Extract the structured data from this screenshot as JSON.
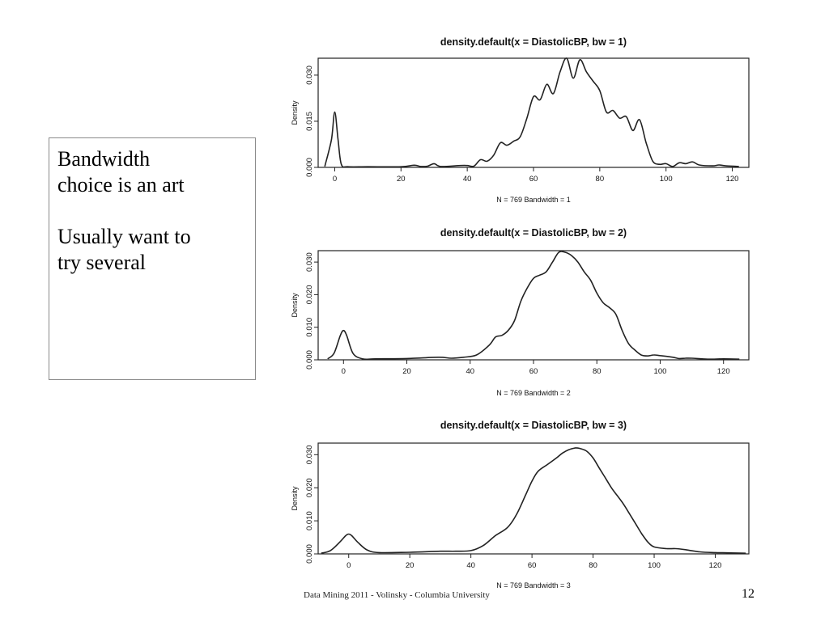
{
  "slide": {
    "text_lines_1": [
      "Bandwidth",
      "choice is an art"
    ],
    "text_lines_2": [
      "Usually want to",
      "try several"
    ],
    "footer": "Data Mining 2011 - Volinsky - Columbia University",
    "page_number": "12"
  },
  "chart_data": [
    {
      "type": "line",
      "title": "density.default(x = DiastolicBP, bw = 1)",
      "xlabel": "N = 769   Bandwidth = 1",
      "ylabel": "Density",
      "xlim": [
        -5,
        125
      ],
      "ylim": [
        0,
        0.0355
      ],
      "xticks": [
        0,
        20,
        40,
        60,
        80,
        100,
        120
      ],
      "yticks": [
        0.0,
        0.015,
        0.03
      ],
      "ytick_labels": [
        "0.000",
        "0.015",
        "0.030"
      ],
      "series": [
        {
          "x": [
            -3,
            -1,
            0,
            1,
            2,
            4,
            10,
            20,
            24,
            26,
            28,
            30,
            32,
            38,
            40,
            42,
            44,
            46,
            48,
            50,
            52,
            54,
            56,
            58,
            60,
            62,
            64,
            66,
            68,
            70,
            72,
            74,
            76,
            78,
            80,
            82,
            84,
            86,
            88,
            90,
            92,
            94,
            96,
            98,
            100,
            102,
            104,
            106,
            108,
            110,
            114,
            116,
            118,
            122
          ],
          "y": [
            0.0003,
            0.009,
            0.018,
            0.009,
            0.001,
            0.0002,
            0.0002,
            0.0002,
            0.0007,
            0.0003,
            0.0004,
            0.0012,
            0.0003,
            0.0006,
            0.0006,
            0.0004,
            0.0025,
            0.002,
            0.004,
            0.008,
            0.0072,
            0.0085,
            0.01,
            0.016,
            0.023,
            0.022,
            0.027,
            0.024,
            0.031,
            0.0355,
            0.029,
            0.035,
            0.031,
            0.028,
            0.025,
            0.018,
            0.0185,
            0.016,
            0.0165,
            0.012,
            0.0155,
            0.008,
            0.002,
            0.001,
            0.0012,
            0.0003,
            0.0015,
            0.0012,
            0.0018,
            0.0008,
            0.0005,
            0.0008,
            0.0005,
            0.0003
          ]
        }
      ]
    },
    {
      "type": "line",
      "title": "density.default(x = DiastolicBP, bw = 2)",
      "xlabel": "N = 769   Bandwidth = 2",
      "ylabel": "Density",
      "xlim": [
        -8,
        128
      ],
      "ylim": [
        0,
        0.0335
      ],
      "xticks": [
        0,
        20,
        40,
        60,
        80,
        100,
        120
      ],
      "yticks": [
        0.0,
        0.01,
        0.02,
        0.03
      ],
      "ytick_labels": [
        "0.000",
        "0.010",
        "0.020",
        "0.030"
      ],
      "series": [
        {
          "x": [
            -5,
            -3,
            -1,
            0,
            1,
            3,
            6,
            10,
            20,
            30,
            34,
            38,
            42,
            46,
            48,
            50,
            52,
            54,
            56,
            58,
            60,
            62,
            64,
            66,
            68,
            70,
            72,
            74,
            76,
            78,
            80,
            82,
            84,
            86,
            88,
            90,
            92,
            94,
            96,
            98,
            100,
            104,
            106,
            108,
            110,
            115,
            120,
            125
          ],
          "y": [
            0.0003,
            0.002,
            0.0075,
            0.009,
            0.0075,
            0.002,
            0.0003,
            0.0003,
            0.0004,
            0.0008,
            0.0005,
            0.0008,
            0.0015,
            0.0045,
            0.007,
            0.0075,
            0.009,
            0.012,
            0.018,
            0.022,
            0.025,
            0.026,
            0.027,
            0.03,
            0.033,
            0.033,
            0.032,
            0.03,
            0.027,
            0.0245,
            0.0205,
            0.0175,
            0.016,
            0.014,
            0.009,
            0.005,
            0.003,
            0.0015,
            0.0012,
            0.0015,
            0.0013,
            0.0008,
            0.0004,
            0.0005,
            0.0005,
            0.0002,
            0.0003,
            0.0002
          ]
        }
      ]
    },
    {
      "type": "line",
      "title": "density.default(x = DiastolicBP, bw = 3)",
      "xlabel": "N = 769   Bandwidth = 3",
      "ylabel": "Density",
      "xlim": [
        -10,
        131
      ],
      "ylim": [
        0,
        0.0335
      ],
      "xticks": [
        0,
        20,
        40,
        60,
        80,
        100,
        120
      ],
      "yticks": [
        0.0,
        0.01,
        0.02,
        0.03
      ],
      "ytick_labels": [
        "0.000",
        "0.010",
        "0.020",
        "0.030"
      ],
      "series": [
        {
          "x": [
            -9,
            -6,
            -3,
            -1,
            0,
            1,
            3,
            6,
            10,
            20,
            30,
            35,
            40,
            44,
            48,
            52,
            55,
            58,
            60,
            62,
            65,
            68,
            70,
            72,
            74,
            75,
            76,
            78,
            80,
            82,
            84,
            86,
            88,
            90,
            92,
            94,
            96,
            98,
            100,
            104,
            107,
            110,
            115,
            120,
            125,
            130
          ],
          "y": [
            0.0002,
            0.001,
            0.0035,
            0.0055,
            0.006,
            0.0055,
            0.0035,
            0.0012,
            0.0004,
            0.0005,
            0.0008,
            0.0008,
            0.001,
            0.0025,
            0.0055,
            0.008,
            0.012,
            0.018,
            0.022,
            0.025,
            0.027,
            0.029,
            0.0305,
            0.0315,
            0.032,
            0.032,
            0.0318,
            0.031,
            0.029,
            0.026,
            0.023,
            0.02,
            0.0175,
            0.015,
            0.012,
            0.009,
            0.006,
            0.0035,
            0.0021,
            0.0016,
            0.0016,
            0.0013,
            0.0006,
            0.0004,
            0.0003,
            0.0002
          ]
        }
      ]
    }
  ]
}
